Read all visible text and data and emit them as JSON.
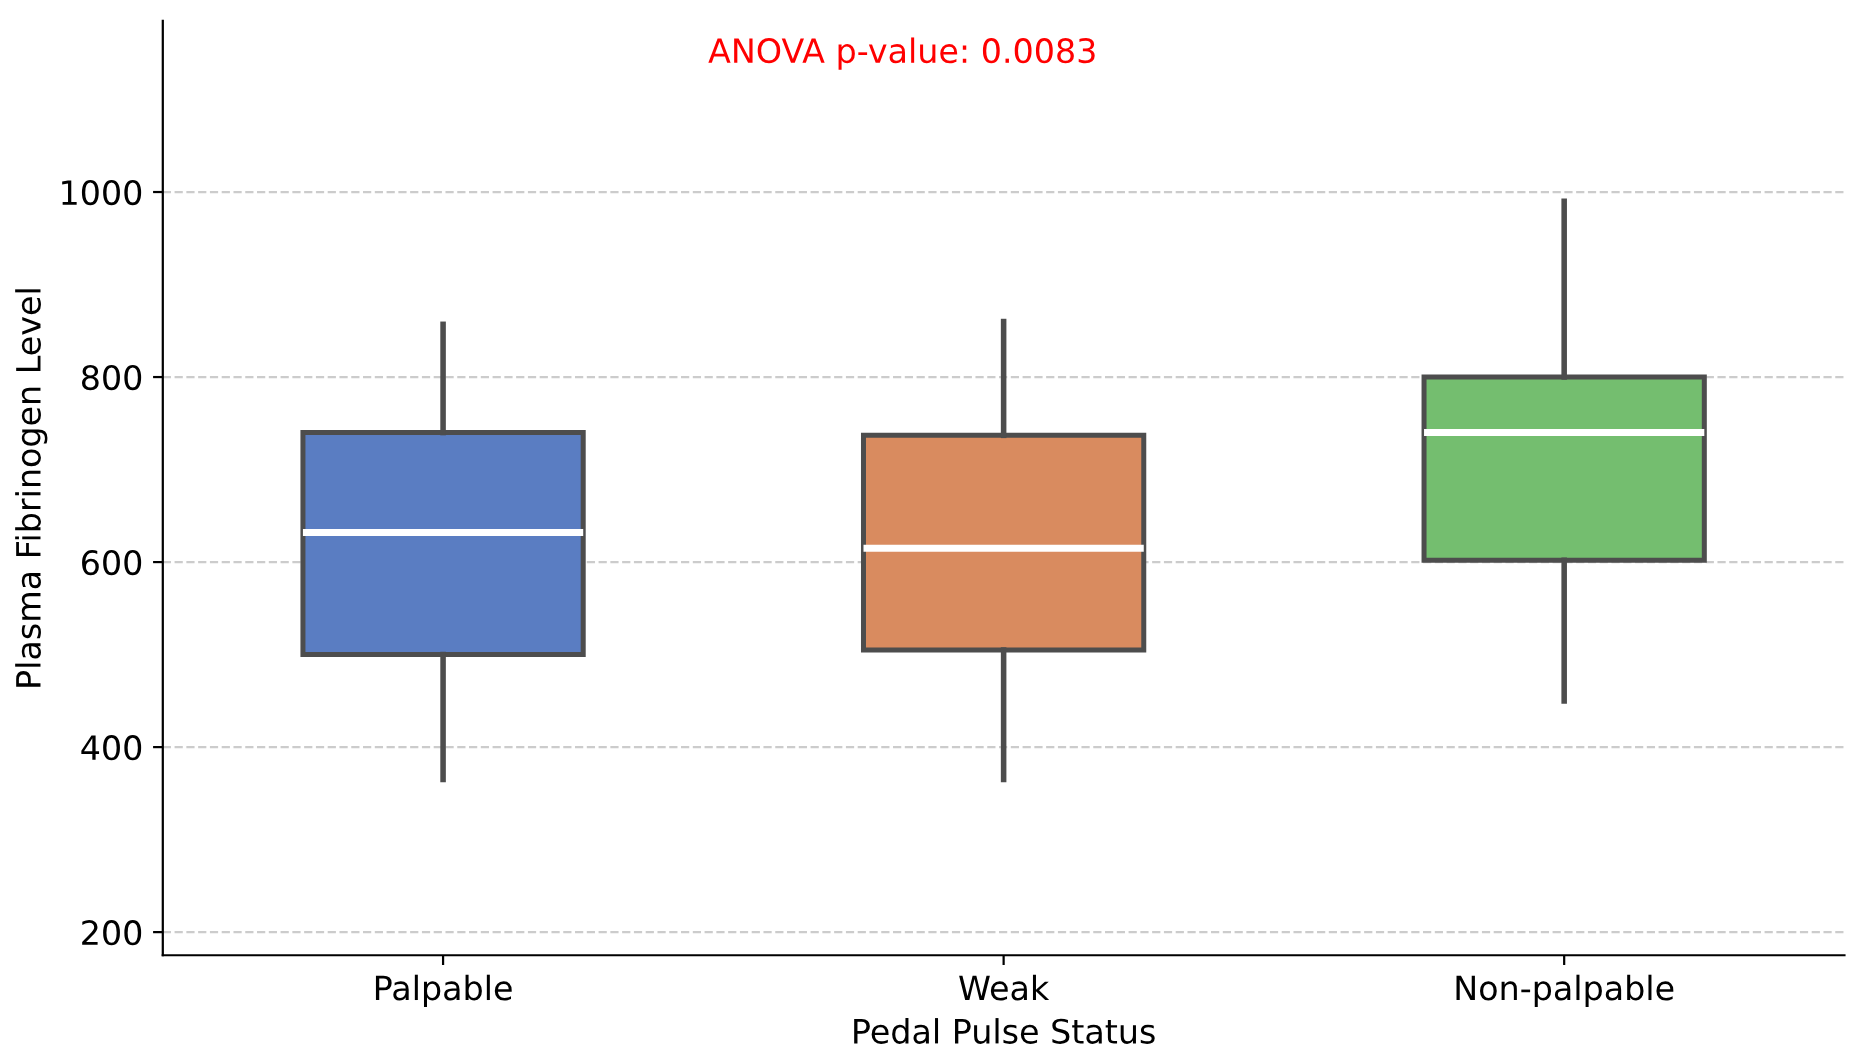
{
  "chart_data": {
    "type": "box",
    "xlabel": "Pedal Pulse Status",
    "ylabel": "Plasma Fibrinogen Level",
    "categories": [
      "Palpable",
      "Weak",
      "Non-palpable"
    ],
    "boxes": [
      {
        "low": 365,
        "q1": 500,
        "median": 632,
        "q3": 740,
        "high": 857
      },
      {
        "low": 365,
        "q1": 505,
        "median": 615,
        "q3": 737,
        "high": 860
      },
      {
        "low": 450,
        "q1": 602,
        "median": 740,
        "q3": 800,
        "high": 990
      }
    ],
    "colors": [
      "#5a7dc2",
      "#d98b5f",
      "#74be6f"
    ],
    "ylim": [
      175,
      1185
    ],
    "yticks": [
      200,
      400,
      600,
      800,
      1000
    ],
    "grid": "y",
    "annotations": [
      "ANOVA p-value: 0.0083"
    ]
  }
}
